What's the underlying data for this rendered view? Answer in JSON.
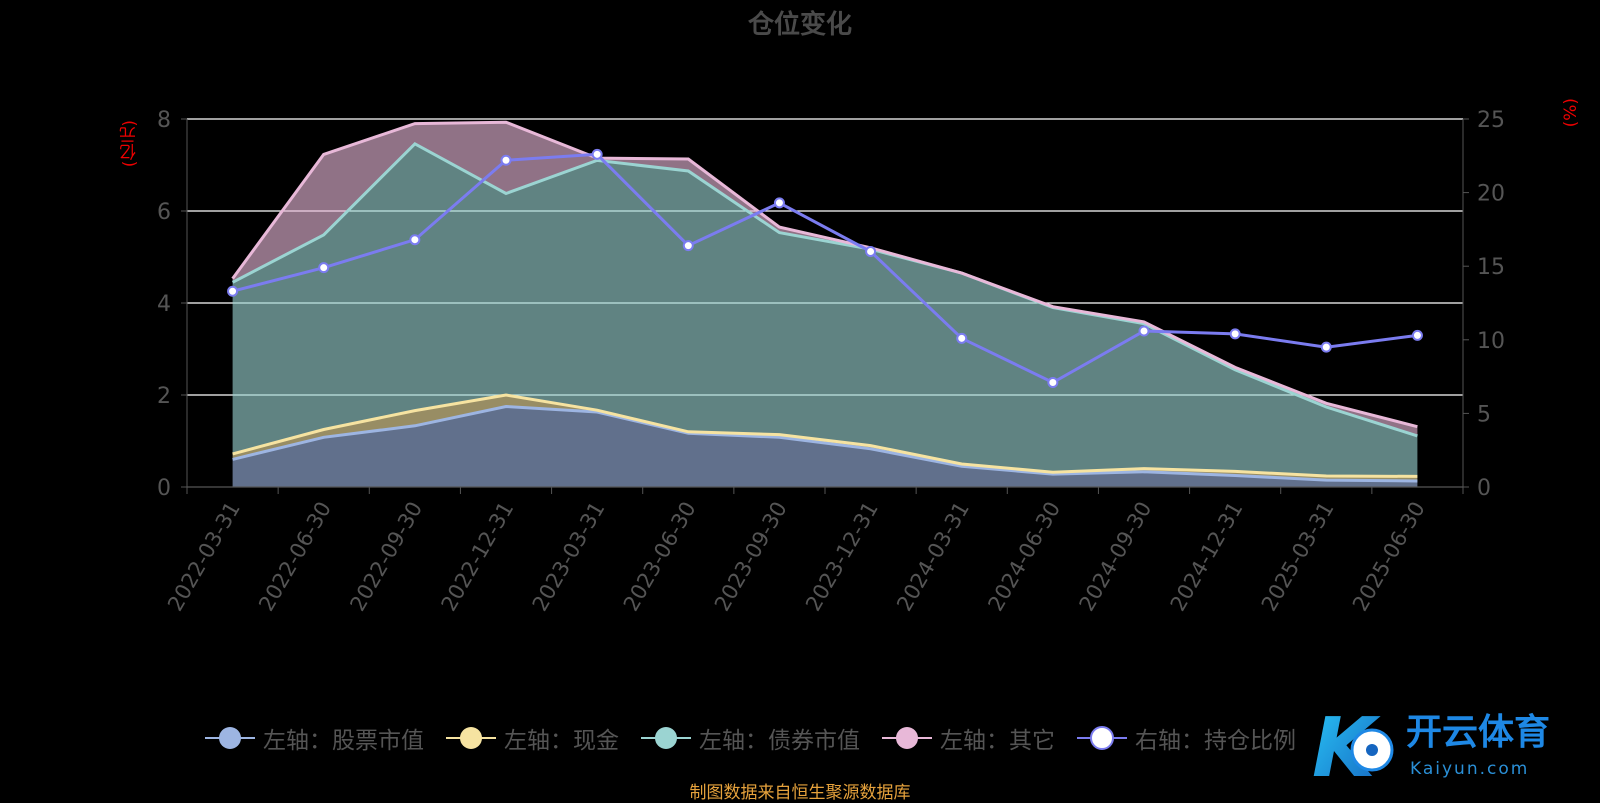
{
  "title": "仓位变化",
  "left_unit": "(亿元)",
  "right_unit": "(%)",
  "footer": "制图数据来自恒生聚源数据库",
  "watermark": {
    "brand": "开云体育",
    "domain": "Kaiyun.com",
    "glyph": "K"
  },
  "colors": {
    "stock": "#9db5e2",
    "cash": "#f6e3a1",
    "bond": "#9bd4d2",
    "other": "#e8b8d8",
    "ratio": "#7b7cf0",
    "grid": "#ffffff",
    "axis_text": "#555555",
    "unit": "#ee0000"
  },
  "legend": [
    {
      "label": "左轴：股票市值",
      "key": "stock"
    },
    {
      "label": "左轴：现金",
      "key": "cash"
    },
    {
      "label": "左轴：债券市值",
      "key": "bond"
    },
    {
      "label": "左轴：其它",
      "key": "other"
    },
    {
      "label": "右轴：持仓比例",
      "key": "ratio"
    }
  ],
  "chart_data": {
    "type": "area",
    "title": "仓位变化",
    "categories": [
      "2022-03-31",
      "2022-06-30",
      "2022-09-30",
      "2022-12-31",
      "2023-03-31",
      "2023-06-30",
      "2023-09-30",
      "2023-12-31",
      "2024-03-31",
      "2024-06-30",
      "2024-09-30",
      "2024-12-31",
      "2025-03-31",
      "2025-06-30"
    ],
    "y_left": {
      "label": "(亿元)",
      "range": [
        0,
        8
      ],
      "ticks": [
        0,
        2,
        4,
        6,
        8
      ]
    },
    "y_right": {
      "label": "(%)",
      "range": [
        0,
        25
      ],
      "ticks": [
        0,
        5,
        10,
        15,
        20,
        25
      ]
    },
    "stacked": true,
    "grid": true,
    "legend_position": "bottom",
    "series": [
      {
        "name": "左轴：股票市值",
        "axis": "left",
        "type": "area",
        "color_key": "stock",
        "values": [
          0.6,
          1.08,
          1.33,
          1.75,
          1.63,
          1.17,
          1.08,
          0.83,
          0.45,
          0.28,
          0.33,
          0.25,
          0.15,
          0.13
        ]
      },
      {
        "name": "左轴：现金",
        "axis": "left",
        "type": "area",
        "color_key": "cash",
        "values": [
          0.12,
          0.17,
          0.33,
          0.25,
          0.04,
          0.03,
          0.06,
          0.07,
          0.05,
          0.04,
          0.07,
          0.09,
          0.09,
          0.1
        ]
      },
      {
        "name": "左轴：债券市值",
        "axis": "left",
        "type": "area",
        "color_key": "bond",
        "values": [
          3.73,
          4.23,
          5.8,
          4.38,
          5.43,
          5.67,
          4.39,
          4.27,
          4.15,
          3.58,
          3.15,
          2.21,
          1.5,
          0.88
        ]
      },
      {
        "name": "左轴：其它",
        "axis": "left",
        "type": "area",
        "color_key": "other",
        "values": [
          0.08,
          1.75,
          0.44,
          1.55,
          0.05,
          0.26,
          0.12,
          0.03,
          0.0,
          0.02,
          0.04,
          0.05,
          0.08,
          0.2
        ]
      },
      {
        "name": "右轴：持仓比例",
        "axis": "right",
        "type": "line",
        "color_key": "ratio",
        "values": [
          13.3,
          14.9,
          16.8,
          22.2,
          22.6,
          16.4,
          19.3,
          16.0,
          10.1,
          7.1,
          10.6,
          10.4,
          9.5,
          10.3
        ]
      }
    ]
  }
}
